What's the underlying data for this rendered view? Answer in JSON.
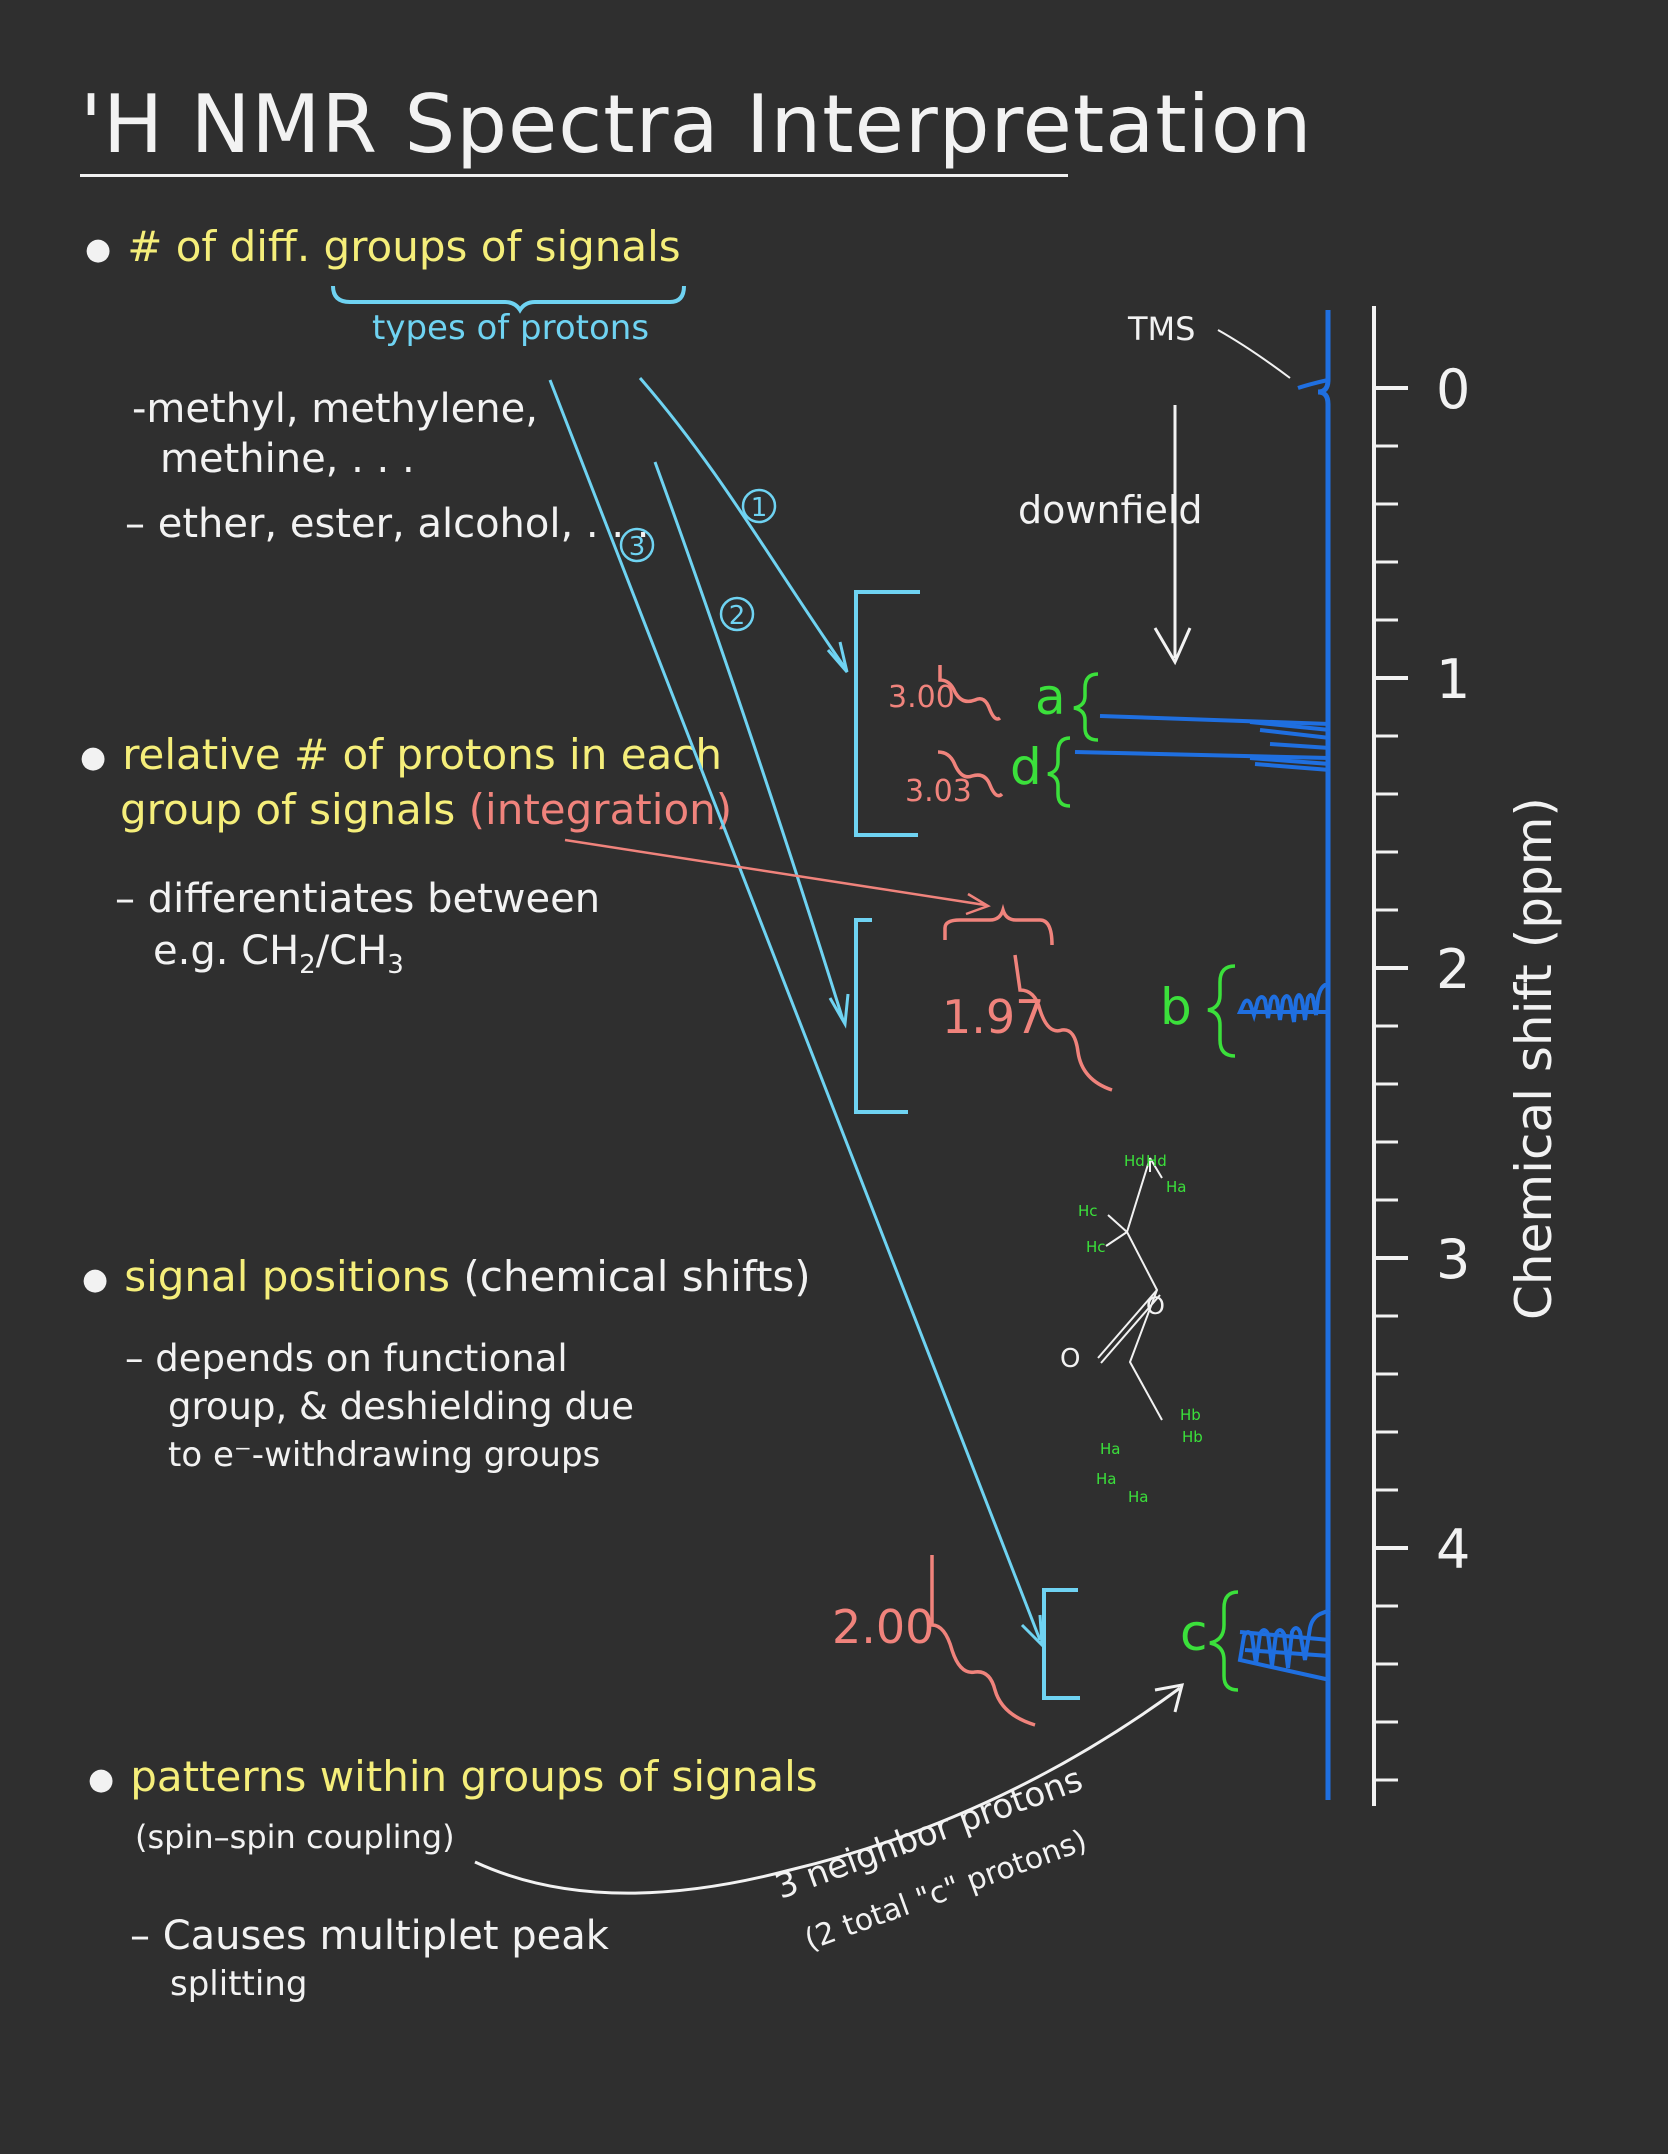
{
  "title": "'H NMR Spectra Interpretation",
  "bullets": [
    {
      "heading": "# of diff. groups of signals",
      "brace_label": "types of protons",
      "sub": [
        "-methyl, methylene,",
        "methine, . . .",
        "– ether, ester, alcohol, . . ."
      ]
    },
    {
      "heading_line1": "relative # of protons in each",
      "heading_line2": "group of signals",
      "heading_paren": "(integration)",
      "sub": [
        "– differentiates between",
        "e.g.  CH",
        "2",
        "/CH",
        "3"
      ]
    },
    {
      "heading": "signal positions",
      "heading_paren": "(chemical shifts)",
      "sub": [
        "– depends on functional",
        "group, & deshielding due",
        "to e⁻-withdrawing groups"
      ]
    },
    {
      "heading": "patterns within groups of signals",
      "paren_line": "(spin–spin coupling)",
      "sub": [
        "– Causes  multiplet peak",
        "splitting"
      ]
    }
  ],
  "arrow_numbers": [
    "1",
    "2",
    "3"
  ],
  "spectrum": {
    "axis_title": "Chemical shift (ppm)",
    "ticks": [
      "0",
      "1",
      "2",
      "3",
      "4"
    ],
    "tms_label": "TMS",
    "downfield_label": "downfield",
    "peak_labels": [
      "a",
      "d",
      "b",
      "c"
    ],
    "integrations": [
      "3.00",
      "3.03",
      "1.97",
      "2.00"
    ],
    "coupling_note_line1": "3 neighbor protons",
    "coupling_note_line2": "(2 total \"c\" protons)",
    "colors": {
      "spectrum": "#1f6fe0",
      "axis": "#f2f2f2",
      "brackets": "#6fd3f2",
      "integration": "#f0837c",
      "labels": "#3be03b"
    }
  },
  "molecule": {
    "atom_labels": [
      "Hd",
      "Hd",
      "Ha",
      "Hc",
      "Hc",
      "O",
      "O",
      "Hb",
      "Hb",
      "Ha",
      "Ha",
      "Ha"
    ]
  }
}
